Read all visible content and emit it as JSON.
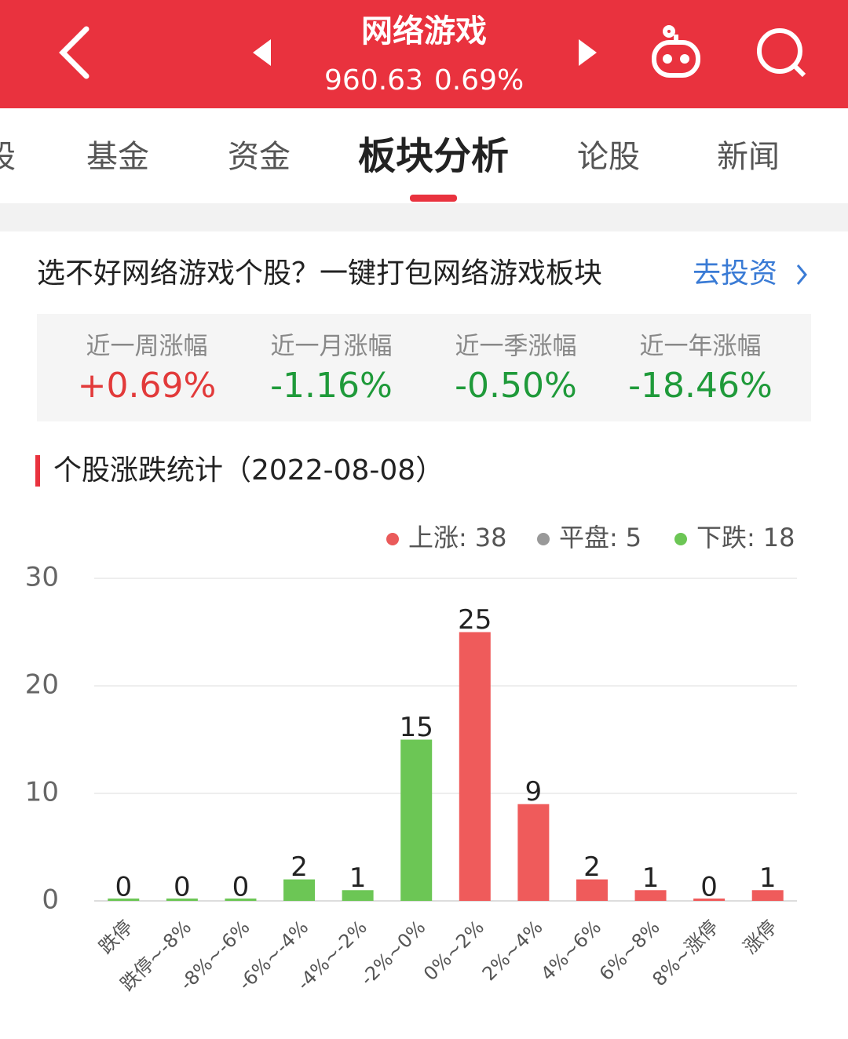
{
  "header": {
    "title": "网络游戏",
    "price": "960.63",
    "change": "0.69%"
  },
  "tabs": [
    "股",
    "基金",
    "资金",
    "板块分析",
    "论股",
    "新闻"
  ],
  "banner": {
    "text": "选不好网络游戏个股？一键打包网络游戏板块",
    "link": "去投资"
  },
  "stats": [
    {
      "label": "近一周涨幅",
      "value": "+0.69%",
      "color": "#e23a3a"
    },
    {
      "label": "近一月涨幅",
      "value": "-1.16%",
      "color": "#1f9a3a"
    },
    {
      "label": "近一季涨幅",
      "value": "-0.50%",
      "color": "#1f9a3a"
    },
    {
      "label": "近一年涨幅",
      "value": "-18.46%",
      "color": "#1f9a3a"
    }
  ],
  "chart_data": {
    "type": "bar",
    "title": "个股涨跌统计（2022-08-08）",
    "legend": [
      {
        "label": "上涨:",
        "value": 38,
        "color": "#ea5a5a"
      },
      {
        "label": "平盘:",
        "value": 5,
        "color": "#999999"
      },
      {
        "label": "下跌:",
        "value": 18,
        "color": "#6cc655"
      }
    ],
    "categories": [
      "跌停",
      "跌停~-8%",
      "-8%~-6%",
      "-6%~-4%",
      "-4%~-2%",
      "-2%~0%",
      "0%~2%",
      "2%~4%",
      "4%~6%",
      "6%~8%",
      "8%~涨停",
      "涨停"
    ],
    "values": [
      0,
      0,
      0,
      2,
      1,
      15,
      25,
      9,
      2,
      1,
      0,
      1
    ],
    "colors": [
      "#6cc655",
      "#6cc655",
      "#6cc655",
      "#6cc655",
      "#6cc655",
      "#6cc655",
      "#ef5b5b",
      "#ef5b5b",
      "#ef5b5b",
      "#ef5b5b",
      "#ef5b5b",
      "#ef5b5b"
    ],
    "ylim": [
      0,
      30
    ],
    "yticks": [
      0,
      10,
      20,
      30
    ],
    "grid": true
  }
}
